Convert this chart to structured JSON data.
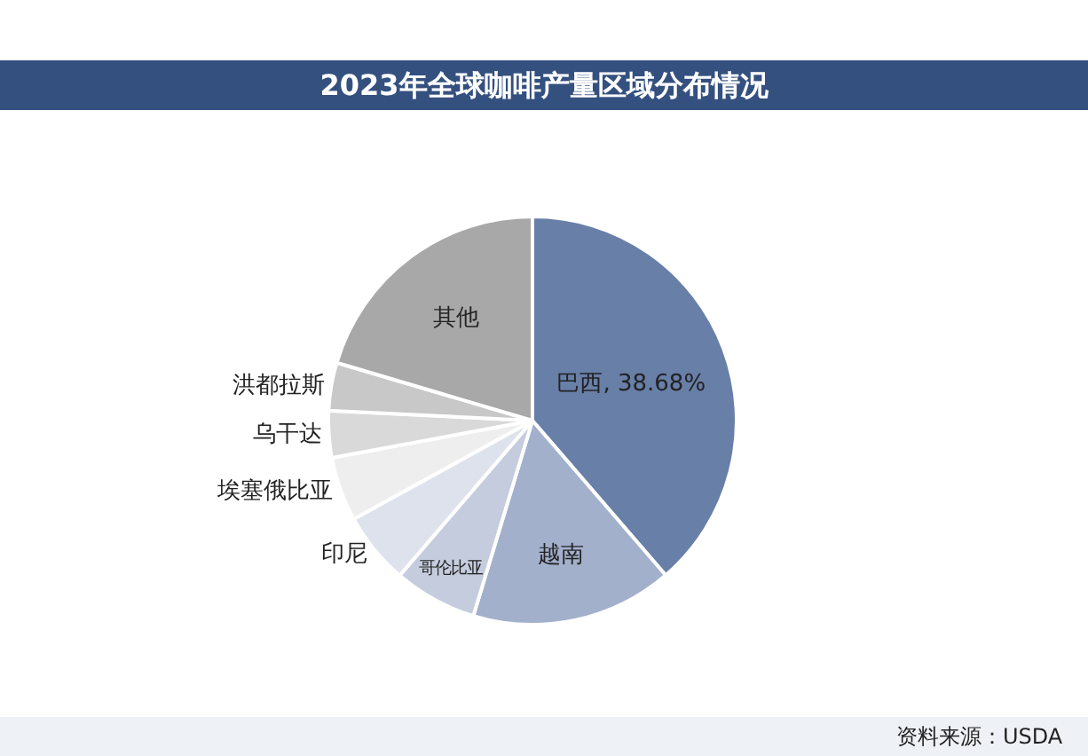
{
  "chart_data": {
    "type": "pie",
    "title": "2023年全球咖啡产量区域分布情况",
    "categories": [
      "巴西",
      "越南",
      "哥伦比亚",
      "印尼",
      "埃塞俄比亚",
      "乌干达",
      "洪都拉斯",
      "其他"
    ],
    "values": [
      38.68,
      16.0,
      6.6,
      5.7,
      5.1,
      3.7,
      3.8,
      20.42
    ],
    "value_labels": [
      "38.68%",
      null,
      null,
      null,
      null,
      null,
      null,
      null
    ],
    "colors": [
      "#687fa8",
      "#a2b0cc",
      "#c4ccdd",
      "#dde2ec",
      "#eeeeee",
      "#d9d9d9",
      "#c8c8c8",
      "#a8a8a8"
    ],
    "annotations": [
      "资料来源：USDA"
    ],
    "legend": false
  }
}
